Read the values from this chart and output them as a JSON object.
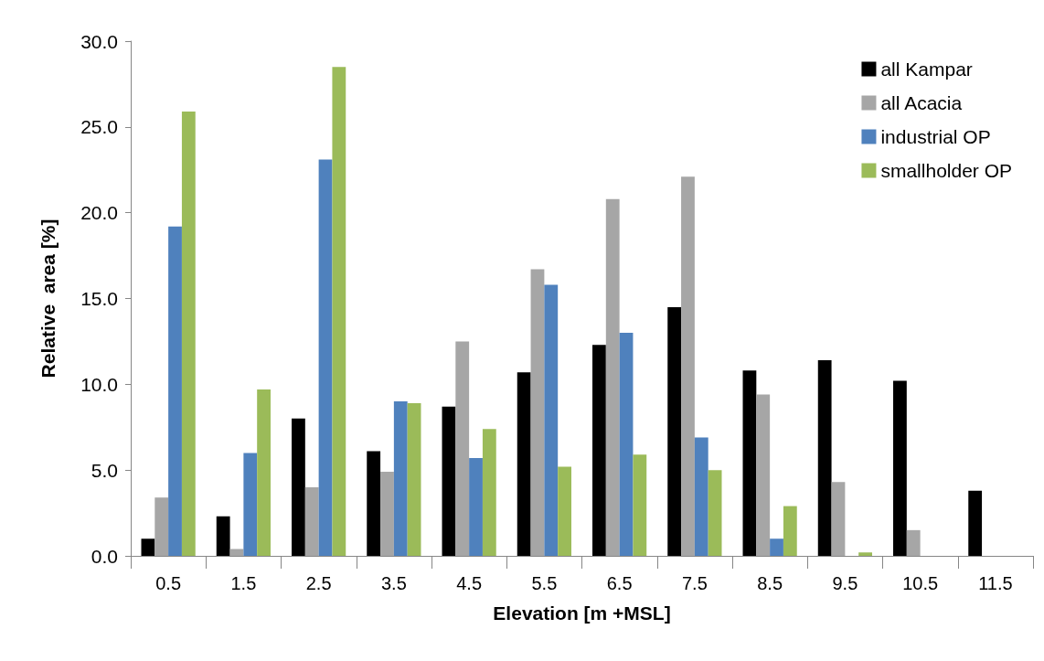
{
  "chart_data": {
    "type": "bar",
    "xlabel": "Elevation [m +MSL]",
    "ylabel": "Relative  area [%]",
    "categories": [
      "0.5",
      "1.5",
      "2.5",
      "3.5",
      "4.5",
      "5.5",
      "6.5",
      "7.5",
      "8.5",
      "9.5",
      "10.5",
      "11.5"
    ],
    "series": [
      {
        "name": "all Kampar",
        "color": "#000000",
        "values": [
          1.0,
          2.3,
          8.0,
          6.1,
          8.7,
          10.7,
          12.3,
          14.5,
          10.8,
          11.4,
          10.2,
          3.8
        ]
      },
      {
        "name": "all Acacia",
        "color": "#a6a6a6",
        "values": [
          3.4,
          0.4,
          4.0,
          4.9,
          12.5,
          16.7,
          20.8,
          22.1,
          9.4,
          4.3,
          1.5,
          0
        ]
      },
      {
        "name": "industrial OP",
        "color": "#4f81bd",
        "values": [
          19.2,
          6.0,
          23.1,
          9.0,
          5.7,
          15.8,
          13.0,
          6.9,
          1.0,
          0,
          0,
          0
        ]
      },
      {
        "name": "smallholder OP",
        "color": "#9bbb59",
        "values": [
          25.9,
          9.7,
          28.5,
          8.9,
          7.4,
          5.2,
          5.9,
          5.0,
          2.9,
          0.2,
          0,
          0
        ]
      }
    ],
    "ylim": [
      0,
      30
    ],
    "yticks": [
      {
        "value": 0,
        "label": "0.0"
      },
      {
        "value": 5,
        "label": "5.0"
      },
      {
        "value": 10,
        "label": "10.0"
      },
      {
        "value": 15,
        "label": "15.0"
      },
      {
        "value": 20,
        "label": "20.0"
      },
      {
        "value": 25,
        "label": "25.0"
      },
      {
        "value": 30,
        "label": "30.0"
      }
    ],
    "grid": false,
    "legend": "top right"
  }
}
